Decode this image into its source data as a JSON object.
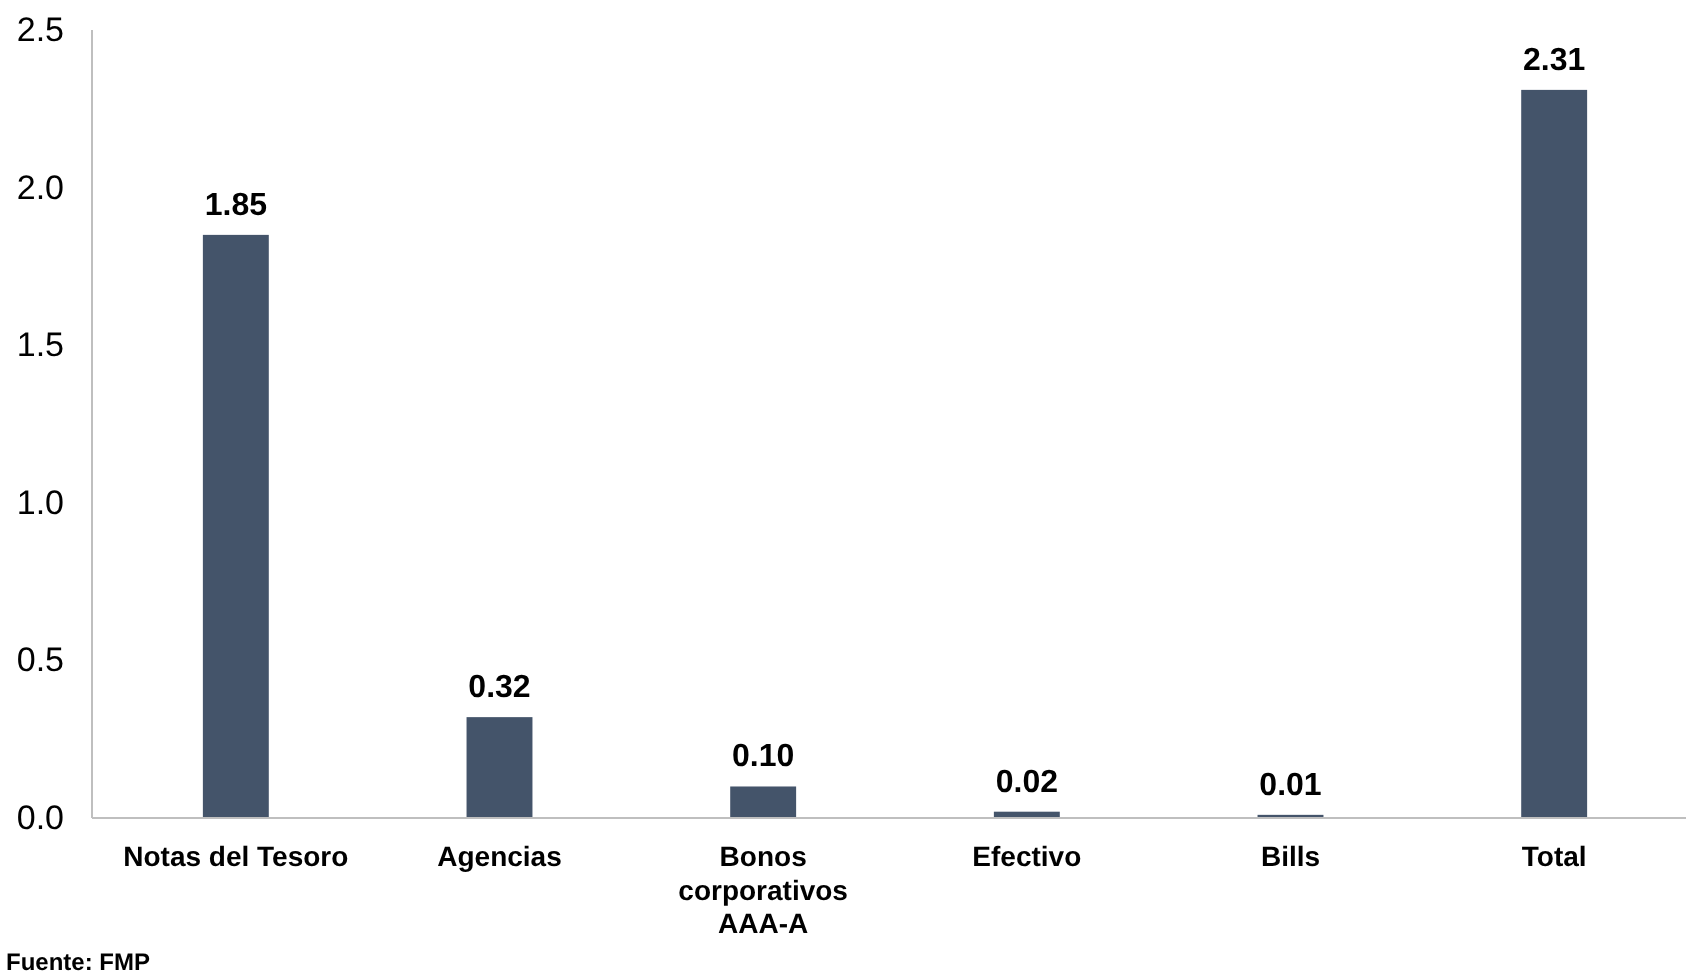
{
  "chart_data": {
    "type": "bar",
    "categories": [
      "Notas del Tesoro",
      "Agencias",
      "Bonos corporativos AAA-A",
      "Efectivo",
      "Bills",
      "Total"
    ],
    "values": [
      1.85,
      0.32,
      0.1,
      0.02,
      0.01,
      2.31
    ],
    "value_labels": [
      "1.85",
      "0.32",
      "0.10",
      "0.02",
      "0.01",
      "2.31"
    ],
    "color": "#44546a",
    "ylim": [
      0,
      2.5
    ],
    "yticks": [
      {
        "value": 0,
        "label": "0.0"
      },
      {
        "value": 0.5,
        "label": "0.5"
      },
      {
        "value": 1,
        "label": "1.0"
      },
      {
        "value": 1.5,
        "label": "1.5"
      },
      {
        "value": 2,
        "label": "2.0"
      },
      {
        "value": 2.5,
        "label": "2.5"
      }
    ],
    "grid": false,
    "annotations": [
      "Fuente: FMP"
    ]
  }
}
